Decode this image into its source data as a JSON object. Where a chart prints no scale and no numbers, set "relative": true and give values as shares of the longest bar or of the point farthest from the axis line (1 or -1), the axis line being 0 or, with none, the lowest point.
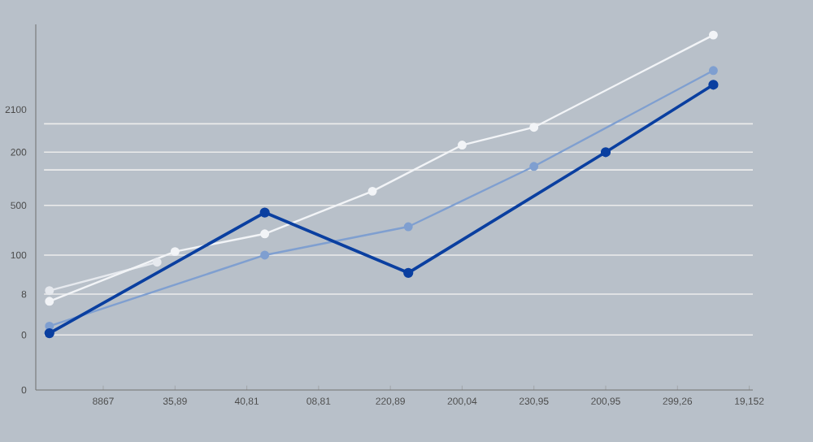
{
  "chart_data": {
    "type": "line",
    "relative": true,
    "categories": [
      null,
      null,
      null,
      "8867",
      null,
      null,
      null,
      "35,89",
      null,
      null,
      null,
      "40,81",
      null,
      null,
      null,
      "08,81",
      null,
      null,
      null,
      "220,89",
      null,
      null,
      null,
      "200,04",
      null,
      null,
      null,
      "230,95",
      null,
      null,
      null,
      "200,95",
      null,
      null,
      null,
      "299,26",
      null,
      null,
      null,
      "19,152"
    ],
    "annotations": [
      "2100",
      "200",
      "500",
      "100",
      "8",
      "0",
      "0"
    ],
    "grid": "y",
    "marker": "circle",
    "line_style": "solid",
    "series": [
      {
        "color": "#e6e9ee",
        "values": [
          0.28,
          null,
          null,
          null,
          null,
          null,
          0.36,
          null,
          null,
          null,
          null,
          null,
          null,
          null,
          null,
          null,
          null,
          null,
          null,
          null,
          null,
          null,
          null,
          null,
          null,
          null,
          null,
          null,
          null,
          null,
          null,
          null,
          null,
          null,
          null,
          null,
          null,
          null,
          null,
          null
        ]
      },
      {
        "color": "#f2f4f7",
        "values": [
          0.25,
          null,
          null,
          null,
          null,
          null,
          null,
          0.39,
          null,
          null,
          null,
          null,
          0.44,
          null,
          null,
          null,
          null,
          null,
          0.56,
          null,
          null,
          null,
          null,
          0.69,
          null,
          null,
          null,
          0.74,
          null,
          null,
          null,
          null,
          null,
          null,
          null,
          null,
          null,
          1,
          null,
          null
        ]
      },
      {
        "color": "#7f9fd0",
        "values": [
          0.18,
          null,
          null,
          null,
          null,
          null,
          null,
          null,
          null,
          null,
          null,
          null,
          0.38,
          null,
          null,
          null,
          null,
          null,
          null,
          null,
          0.46,
          null,
          null,
          null,
          null,
          null,
          null,
          0.63,
          null,
          null,
          null,
          null,
          null,
          null,
          null,
          null,
          null,
          0.9,
          null,
          null
        ]
      },
      {
        "color": "#0a3fa0",
        "values": [
          0.16,
          null,
          null,
          null,
          null,
          null,
          null,
          null,
          null,
          null,
          null,
          null,
          0.5,
          null,
          null,
          null,
          null,
          null,
          null,
          null,
          0.33,
          null,
          null,
          null,
          null,
          null,
          null,
          null,
          null,
          null,
          null,
          0.67,
          null,
          null,
          null,
          null,
          null,
          0.86,
          null,
          null
        ]
      }
    ]
  }
}
